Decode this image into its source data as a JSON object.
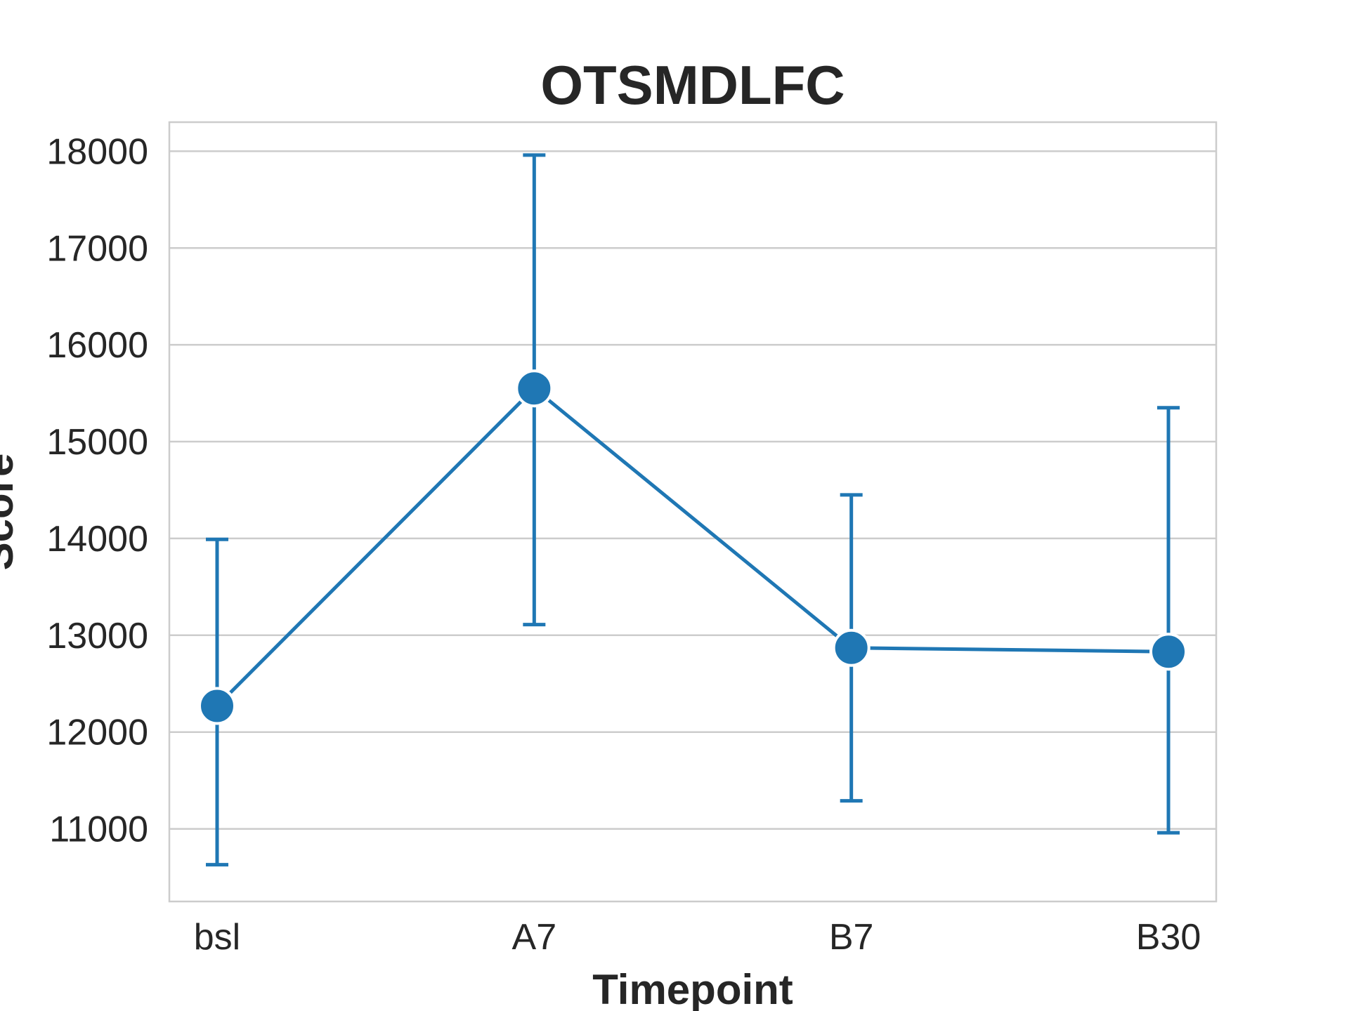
{
  "chart_data": {
    "type": "line",
    "title": "OTSMDLFC",
    "xlabel": "Timepoint",
    "ylabel": "Score",
    "categories": [
      "bsl",
      "A7",
      "B7",
      "B30"
    ],
    "series": [
      {
        "values": [
          12270,
          15550,
          12870,
          12830
        ],
        "error_low": [
          10630,
          13110,
          11290,
          10960
        ],
        "error_high": [
          13990,
          17960,
          14450,
          15350
        ]
      }
    ],
    "yticks": [
      11000,
      12000,
      13000,
      14000,
      15000,
      16000,
      17000,
      18000
    ],
    "ylim": [
      10250,
      18300
    ],
    "grid": true,
    "color": "#1f77b4"
  }
}
